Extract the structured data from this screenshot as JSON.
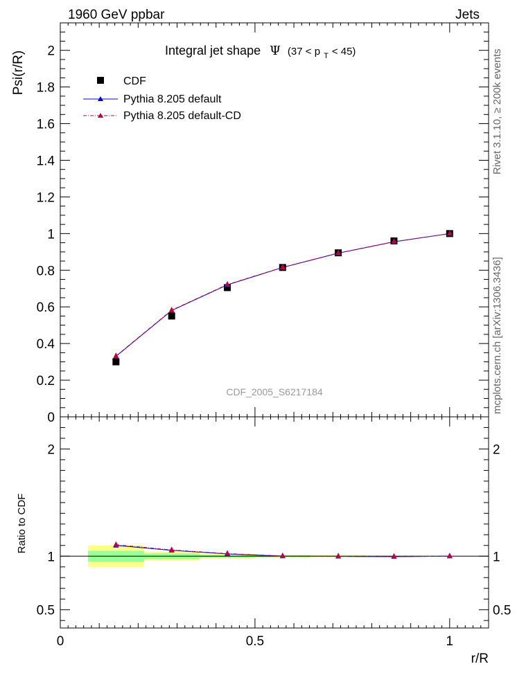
{
  "header": {
    "left": "1960 GeV ppbar",
    "right": "Jets"
  },
  "side_labels": {
    "rivet": "Rivet 3.1.10, ≥ 200k events",
    "mcplots": "mcplots.cern.ch [arXiv:1306.3436]"
  },
  "watermark": "CDF_2005_S6217184",
  "chart_data": [
    {
      "type": "line",
      "title": {
        "main": "Integral jet shape",
        "symbol": "Ψ",
        "range_open": "(37 < p",
        "range_sub": "T",
        "range_close": " < 45)"
      },
      "ylabel": "Psi(r/R)",
      "xlim": [
        0,
        1.1
      ],
      "ylim": [
        0,
        2.15
      ],
      "yticks": [
        0,
        0.2,
        0.4,
        0.6,
        0.8,
        1,
        1.2,
        1.4,
        1.6,
        1.8,
        2
      ],
      "ytick_labels": [
        "0",
        "0.2",
        "0.4",
        "0.6",
        "0.8",
        "1",
        "1.2",
        "1.4",
        "1.6",
        "1.8",
        "2"
      ],
      "legend": [
        "CDF",
        "Pythia 8.205 default",
        "Pythia 8.205 default-CD"
      ],
      "legend_position": "top-left",
      "series": [
        {
          "name": "CDF",
          "style": "marker-square",
          "color": "#000000",
          "x": [
            0.143,
            0.286,
            0.429,
            0.571,
            0.714,
            0.857,
            1.0
          ],
          "y": [
            0.3,
            0.55,
            0.705,
            0.815,
            0.895,
            0.96,
            1.0
          ]
        },
        {
          "name": "Pythia 8.205 default",
          "style": "line-triangle",
          "color": "#0000cc",
          "x": [
            0.143,
            0.286,
            0.429,
            0.571,
            0.714,
            0.857,
            1.0
          ],
          "y": [
            0.33,
            0.58,
            0.72,
            0.815,
            0.893,
            0.955,
            1.0
          ]
        },
        {
          "name": "Pythia 8.205 default-CD",
          "style": "dashdot-triangle",
          "color": "#bb0044",
          "x": [
            0.143,
            0.286,
            0.429,
            0.571,
            0.714,
            0.857,
            1.0
          ],
          "y": [
            0.332,
            0.582,
            0.722,
            0.816,
            0.894,
            0.956,
            1.0
          ]
        }
      ]
    },
    {
      "type": "line",
      "ylabel": "Ratio to CDF",
      "xlabel": "r/R",
      "xlim": [
        0,
        1.1
      ],
      "ylim": [
        0.33,
        2.3
      ],
      "xticks": [
        0,
        0.5,
        1
      ],
      "xtick_labels": [
        "0",
        "0.5",
        "1"
      ],
      "yticks": [
        0.5,
        1,
        2
      ],
      "ytick_labels": [
        "0.5",
        "1",
        "2"
      ],
      "bands": {
        "bin_edges": [
          0.071,
          0.214,
          0.357,
          0.5,
          0.643,
          0.786,
          0.929
        ],
        "stat_color": "#99ff99",
        "total_color": "#ffff88",
        "stat_half_width": [
          0.05,
          0.025,
          0.012,
          0.008,
          0.005,
          0.004
        ],
        "total_half_width": [
          0.1,
          0.042,
          0.022,
          0.012,
          0.008,
          0.005
        ]
      },
      "series": [
        {
          "name": "Pythia 8.205 default",
          "color": "#0000cc",
          "x": [
            0.143,
            0.286,
            0.429,
            0.571,
            0.714,
            0.857,
            1.0
          ],
          "y": [
            1.1,
            1.054,
            1.021,
            1.0,
            0.998,
            0.995,
            1.0
          ]
        },
        {
          "name": "Pythia 8.205 default-CD",
          "color": "#bb0044",
          "x": [
            0.143,
            0.286,
            0.429,
            0.571,
            0.714,
            0.857,
            1.0
          ],
          "y": [
            1.107,
            1.058,
            1.024,
            1.002,
            0.999,
            0.996,
            1.0
          ]
        }
      ]
    }
  ]
}
